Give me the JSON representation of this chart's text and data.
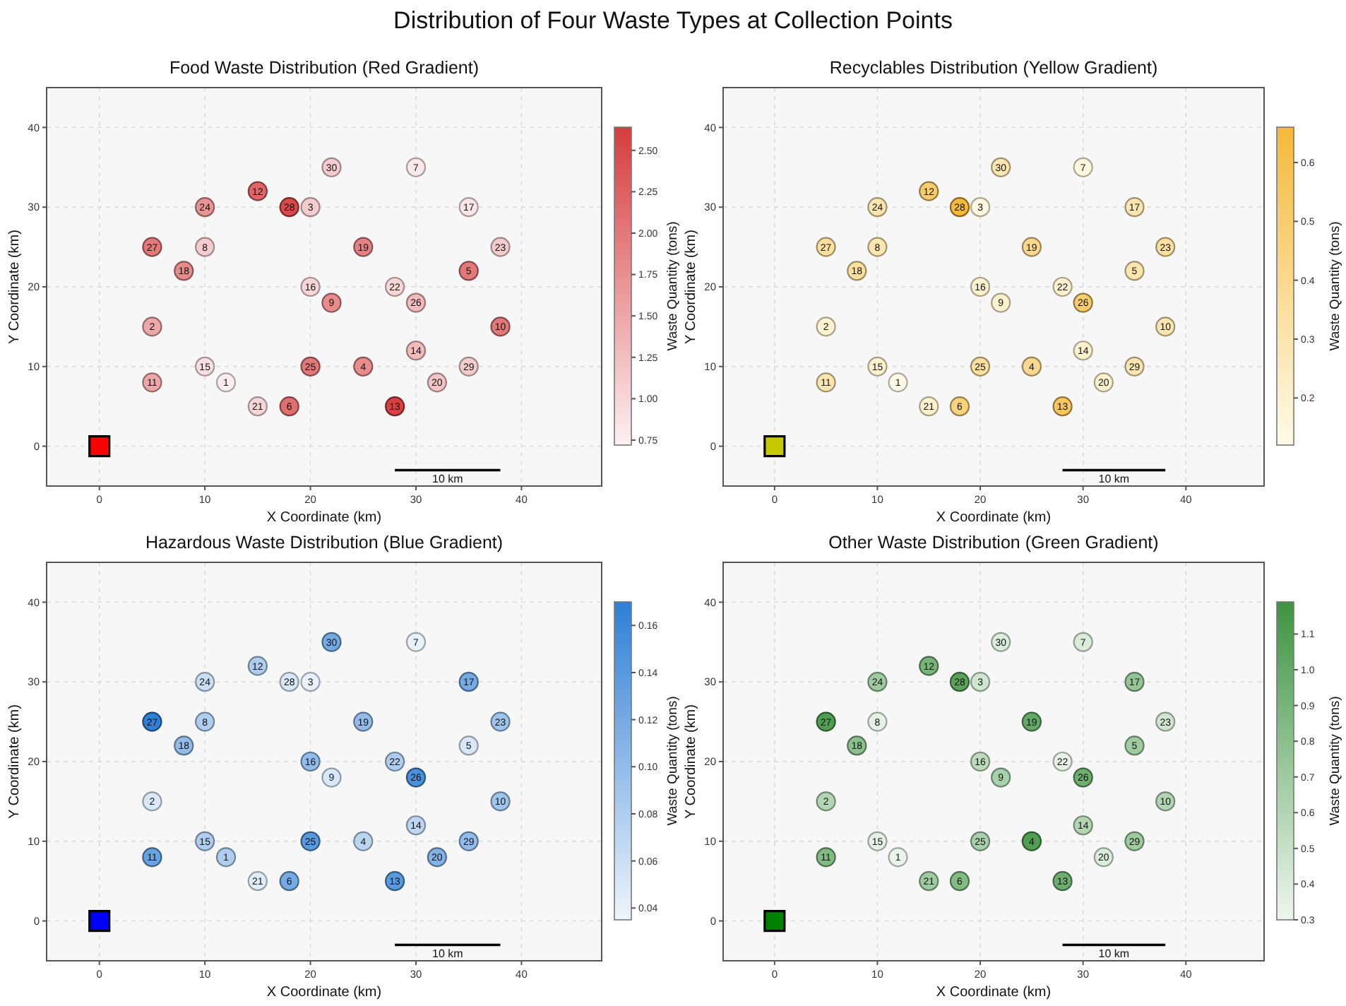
{
  "chart_data": [
    {
      "type": "other",
      "title": "Distribution of Four Waste Types at Collection Points"
    },
    {
      "type": "scatter",
      "title": "Food Waste Distribution (Red Gradient)",
      "xlabel": "X Coordinate (km)",
      "ylabel": "Y Coordinate (km)",
      "clabel": "Waste Quantity (tons)",
      "xlim": [
        -5,
        47.6
      ],
      "ylim": [
        -5,
        45
      ],
      "xticks": [
        0,
        10,
        20,
        30,
        40
      ],
      "yticks": [
        0,
        10,
        20,
        30,
        40
      ],
      "grid": true,
      "clim": [
        0.72,
        2.64
      ],
      "cticks": [
        {
          "value": 0.75,
          "label": "0.75"
        },
        {
          "value": 1,
          "label": "1.00"
        },
        {
          "value": 1.25,
          "label": "1.25"
        },
        {
          "value": 1.5,
          "label": "1.50"
        },
        {
          "value": 1.75,
          "label": "1.75"
        },
        {
          "value": 2,
          "label": "2.00"
        },
        {
          "value": 2.25,
          "label": "2.25"
        },
        {
          "value": 2.5,
          "label": "2.50"
        }
      ],
      "annotations": [
        {
          "text": "10 km",
          "x": 33,
          "y": -3
        },
        {
          "text": "1",
          "x": 12,
          "y": 8
        },
        {
          "text": "2",
          "x": 5,
          "y": 15
        },
        {
          "text": "3",
          "x": 20,
          "y": 30
        },
        {
          "text": "4",
          "x": 25,
          "y": 10
        },
        {
          "text": "5",
          "x": 35,
          "y": 22
        },
        {
          "text": "6",
          "x": 18,
          "y": 5
        },
        {
          "text": "7",
          "x": 30,
          "y": 35
        },
        {
          "text": "8",
          "x": 10,
          "y": 25
        },
        {
          "text": "9",
          "x": 22,
          "y": 18
        },
        {
          "text": "10",
          "x": 38,
          "y": 15
        },
        {
          "text": "11",
          "x": 5,
          "y": 8
        },
        {
          "text": "12",
          "x": 15,
          "y": 32
        },
        {
          "text": "13",
          "x": 28,
          "y": 5
        },
        {
          "text": "14",
          "x": 30,
          "y": 12
        },
        {
          "text": "15",
          "x": 10,
          "y": 10
        },
        {
          "text": "16",
          "x": 20,
          "y": 20
        },
        {
          "text": "17",
          "x": 35,
          "y": 30
        },
        {
          "text": "18",
          "x": 8,
          "y": 22
        },
        {
          "text": "19",
          "x": 25,
          "y": 25
        },
        {
          "text": "20",
          "x": 32,
          "y": 8
        },
        {
          "text": "21",
          "x": 15,
          "y": 5
        },
        {
          "text": "22",
          "x": 28,
          "y": 20
        },
        {
          "text": "23",
          "x": 38,
          "y": 25
        },
        {
          "text": "24",
          "x": 10,
          "y": 30
        },
        {
          "text": "25",
          "x": 20,
          "y": 10
        },
        {
          "text": "26",
          "x": 30,
          "y": 18
        },
        {
          "text": "27",
          "x": 5,
          "y": 25
        },
        {
          "text": "28",
          "x": 18,
          "y": 30
        },
        {
          "text": "29",
          "x": 35,
          "y": 10
        },
        {
          "text": "30",
          "x": 22,
          "y": 35
        }
      ],
      "series": [
        {
          "type": "scatter",
          "marker": "circle",
          "x": [
            12,
            5,
            20,
            25,
            35,
            18,
            30,
            10,
            22,
            38,
            5,
            15,
            28,
            30,
            10,
            20,
            35,
            8,
            25,
            32,
            15,
            28,
            38,
            10,
            20,
            30,
            5,
            18,
            35,
            22
          ],
          "values": [
            8,
            15,
            30,
            10,
            22,
            5,
            35,
            25,
            18,
            15,
            8,
            32,
            5,
            12,
            10,
            20,
            30,
            22,
            25,
            8,
            5,
            20,
            25,
            30,
            10,
            18,
            25,
            30,
            10,
            35
          ],
          "cvalues": [
            0.75,
            1.5,
            1.1,
            1.8,
            2.0,
            2.1,
            0.8,
            1.1,
            1.8,
            2.0,
            1.5,
            2.2,
            2.6,
            1.3,
            0.9,
            1.0,
            0.85,
            1.8,
            1.9,
            1.2,
            1.0,
            1.0,
            1.1,
            1.7,
            2.0,
            1.3,
            2.0,
            2.5,
            1.1,
            1.1
          ],
          "colors": [
            "#fcedef",
            "#eda7a8",
            "#f5ccce",
            "#e78b8c",
            "#e37879",
            "#e16f6f",
            "#fbe8ea",
            "#f5ccce",
            "#e78b8c",
            "#e37879",
            "#eda7a8",
            "#df6566",
            "#d74040",
            "#f1babb",
            "#f9dfe1",
            "#f7d6d7",
            "#fae4e6",
            "#e78b8c",
            "#e58182",
            "#f3c3c5",
            "#f7d6d7",
            "#f7d6d7",
            "#f5ccce",
            "#e99495",
            "#e37879",
            "#f1babb",
            "#e37879",
            "#d94949",
            "#f5ccce",
            "#f5ccce"
          ]
        },
        {
          "type": "scatter",
          "marker": "square",
          "color": "#ff0000",
          "x": [
            0
          ],
          "values": [
            0
          ]
        },
        {
          "type": "line",
          "color": "#000000",
          "x": [
            28,
            38
          ],
          "values": [
            -3,
            -3
          ]
        }
      ]
    },
    {
      "type": "scatter",
      "title": "Recyclables Distribution (Yellow Gradient)",
      "xlabel": "X Coordinate (km)",
      "ylabel": "Y Coordinate (km)",
      "clabel": "Waste Quantity (tons)",
      "xlim": [
        -5,
        47.6
      ],
      "ylim": [
        -5,
        45
      ],
      "xticks": [
        0,
        10,
        20,
        30,
        40
      ],
      "yticks": [
        0,
        10,
        20,
        30,
        40
      ],
      "grid": true,
      "clim": [
        0.12,
        0.66
      ],
      "cticks": [
        0.2,
        0.3,
        0.4,
        0.5,
        0.6
      ],
      "annotations": [
        {
          "text": "10 km",
          "x": 33,
          "y": -3
        },
        {
          "text": "1",
          "x": 12,
          "y": 8
        },
        {
          "text": "2",
          "x": 5,
          "y": 15
        },
        {
          "text": "3",
          "x": 20,
          "y": 30
        },
        {
          "text": "4",
          "x": 25,
          "y": 10
        },
        {
          "text": "5",
          "x": 35,
          "y": 22
        },
        {
          "text": "6",
          "x": 18,
          "y": 5
        },
        {
          "text": "7",
          "x": 30,
          "y": 35
        },
        {
          "text": "8",
          "x": 10,
          "y": 25
        },
        {
          "text": "9",
          "x": 22,
          "y": 18
        },
        {
          "text": "10",
          "x": 38,
          "y": 15
        },
        {
          "text": "11",
          "x": 5,
          "y": 8
        },
        {
          "text": "12",
          "x": 15,
          "y": 32
        },
        {
          "text": "13",
          "x": 28,
          "y": 5
        },
        {
          "text": "14",
          "x": 30,
          "y": 12
        },
        {
          "text": "15",
          "x": 10,
          "y": 10
        },
        {
          "text": "16",
          "x": 20,
          "y": 20
        },
        {
          "text": "17",
          "x": 35,
          "y": 30
        },
        {
          "text": "18",
          "x": 8,
          "y": 22
        },
        {
          "text": "19",
          "x": 25,
          "y": 25
        },
        {
          "text": "20",
          "x": 32,
          "y": 8
        },
        {
          "text": "21",
          "x": 15,
          "y": 5
        },
        {
          "text": "22",
          "x": 28,
          "y": 20
        },
        {
          "text": "23",
          "x": 38,
          "y": 25
        },
        {
          "text": "24",
          "x": 10,
          "y": 30
        },
        {
          "text": "25",
          "x": 20,
          "y": 10
        },
        {
          "text": "26",
          "x": 30,
          "y": 18
        },
        {
          "text": "27",
          "x": 5,
          "y": 25
        },
        {
          "text": "28",
          "x": 18,
          "y": 30
        },
        {
          "text": "29",
          "x": 35,
          "y": 10
        },
        {
          "text": "30",
          "x": 22,
          "y": 35
        }
      ],
      "series": [
        {
          "type": "scatter",
          "marker": "circle",
          "x": [
            12,
            5,
            20,
            25,
            35,
            18,
            30,
            10,
            22,
            38,
            5,
            15,
            28,
            30,
            10,
            20,
            35,
            8,
            25,
            32,
            15,
            28,
            38,
            10,
            20,
            30,
            5,
            18,
            35,
            22
          ],
          "values": [
            8,
            15,
            30,
            10,
            22,
            5,
            35,
            25,
            18,
            15,
            8,
            32,
            5,
            12,
            10,
            20,
            30,
            22,
            25,
            8,
            5,
            20,
            25,
            30,
            10,
            18,
            25,
            30,
            10,
            35
          ],
          "cvalues": [
            0.13,
            0.2,
            0.15,
            0.4,
            0.3,
            0.45,
            0.15,
            0.3,
            0.2,
            0.3,
            0.3,
            0.5,
            0.55,
            0.2,
            0.2,
            0.2,
            0.3,
            0.35,
            0.4,
            0.2,
            0.2,
            0.2,
            0.35,
            0.3,
            0.35,
            0.5,
            0.35,
            0.66,
            0.3,
            0.3
          ],
          "colors": [
            "#fffae5",
            "#fef1ce",
            "#fef7de",
            "#fad98e",
            "#fce5ae",
            "#f9d37e",
            "#fef7de",
            "#fce5ae",
            "#fef1ce",
            "#fce5ae",
            "#fce5ae",
            "#f8cd6e",
            "#f7c65d",
            "#fef1ce",
            "#fef1ce",
            "#fef1ce",
            "#fce5ae",
            "#fbdf9e",
            "#fad98e",
            "#fef1ce",
            "#fef1ce",
            "#fef1ce",
            "#fbdf9e",
            "#fce5ae",
            "#fbdf9e",
            "#f8cd6e",
            "#fbdf9e",
            "#f5b93a",
            "#fce5ae",
            "#fce5ae"
          ]
        },
        {
          "type": "scatter",
          "marker": "square",
          "color": "#c8c800",
          "x": [
            0
          ],
          "values": [
            0
          ]
        },
        {
          "type": "line",
          "color": "#000000",
          "x": [
            28,
            38
          ],
          "values": [
            -3,
            -3
          ]
        }
      ]
    },
    {
      "type": "scatter",
      "title": "Hazardous Waste Distribution (Blue Gradient)",
      "xlabel": "X Coordinate (km)",
      "ylabel": "Y Coordinate (km)",
      "clabel": "Waste Quantity (tons)",
      "xlim": [
        -5,
        47.6
      ],
      "ylim": [
        -5,
        45
      ],
      "xticks": [
        0,
        10,
        20,
        30,
        40
      ],
      "yticks": [
        0,
        10,
        20,
        30,
        40
      ],
      "grid": true,
      "clim": [
        0.035,
        0.17
      ],
      "cticks": [
        0.04,
        0.06,
        0.08,
        {
          "value": 0.1,
          "label": "0.10"
        },
        0.12,
        0.14,
        0.16
      ],
      "annotations": [
        {
          "text": "10 km",
          "x": 33,
          "y": -3
        },
        {
          "text": "1",
          "x": 12,
          "y": 8
        },
        {
          "text": "2",
          "x": 5,
          "y": 15
        },
        {
          "text": "3",
          "x": 20,
          "y": 30
        },
        {
          "text": "4",
          "x": 25,
          "y": 10
        },
        {
          "text": "5",
          "x": 35,
          "y": 22
        },
        {
          "text": "6",
          "x": 18,
          "y": 5
        },
        {
          "text": "7",
          "x": 30,
          "y": 35
        },
        {
          "text": "8",
          "x": 10,
          "y": 25
        },
        {
          "text": "9",
          "x": 22,
          "y": 18
        },
        {
          "text": "10",
          "x": 38,
          "y": 15
        },
        {
          "text": "11",
          "x": 5,
          "y": 8
        },
        {
          "text": "12",
          "x": 15,
          "y": 32
        },
        {
          "text": "13",
          "x": 28,
          "y": 5
        },
        {
          "text": "14",
          "x": 30,
          "y": 12
        },
        {
          "text": "15",
          "x": 10,
          "y": 10
        },
        {
          "text": "16",
          "x": 20,
          "y": 20
        },
        {
          "text": "17",
          "x": 35,
          "y": 30
        },
        {
          "text": "18",
          "x": 8,
          "y": 22
        },
        {
          "text": "19",
          "x": 25,
          "y": 25
        },
        {
          "text": "20",
          "x": 32,
          "y": 8
        },
        {
          "text": "21",
          "x": 15,
          "y": 5
        },
        {
          "text": "22",
          "x": 28,
          "y": 20
        },
        {
          "text": "23",
          "x": 38,
          "y": 25
        },
        {
          "text": "24",
          "x": 10,
          "y": 30
        },
        {
          "text": "25",
          "x": 20,
          "y": 10
        },
        {
          "text": "26",
          "x": 30,
          "y": 18
        },
        {
          "text": "27",
          "x": 5,
          "y": 25
        },
        {
          "text": "28",
          "x": 18,
          "y": 30
        },
        {
          "text": "29",
          "x": 35,
          "y": 10
        },
        {
          "text": "30",
          "x": 22,
          "y": 35
        }
      ],
      "series": [
        {
          "type": "scatter",
          "marker": "circle",
          "x": [
            12,
            5,
            20,
            25,
            35,
            18,
            30,
            10,
            22,
            38,
            5,
            15,
            28,
            30,
            10,
            20,
            35,
            8,
            25,
            32,
            15,
            28,
            38,
            10,
            20,
            30,
            5,
            18,
            35,
            22
          ],
          "values": [
            8,
            15,
            30,
            10,
            22,
            5,
            35,
            25,
            18,
            15,
            8,
            32,
            5,
            12,
            10,
            20,
            30,
            22,
            25,
            8,
            5,
            20,
            25,
            30,
            10,
            18,
            25,
            30,
            10,
            35
          ],
          "cvalues": [
            0.08,
            0.05,
            0.04,
            0.07,
            0.05,
            0.12,
            0.04,
            0.08,
            0.05,
            0.09,
            0.13,
            0.08,
            0.14,
            0.07,
            0.08,
            0.1,
            0.12,
            0.1,
            0.1,
            0.11,
            0.045,
            0.08,
            0.09,
            0.06,
            0.14,
            0.15,
            0.17,
            0.05,
            0.1,
            0.12
          ],
          "colors": [
            "#aecdef",
            "#d9e8f8",
            "#e7f1fb",
            "#bcd6f2",
            "#d9e8f8",
            "#75abe4",
            "#e7f1fb",
            "#aecdef",
            "#d9e8f8",
            "#a0c5ed",
            "#67a2e1",
            "#aecdef",
            "#5999de",
            "#bcd6f2",
            "#aecdef",
            "#92bcea",
            "#75abe4",
            "#92bcea",
            "#92bcea",
            "#83b3e7",
            "#e0ecf9",
            "#aecdef",
            "#a0c5ed",
            "#cadff5",
            "#5999de",
            "#4a90dc",
            "#2e7fd6",
            "#d9e8f8",
            "#92bcea",
            "#75abe4"
          ]
        },
        {
          "type": "scatter",
          "marker": "square",
          "color": "#0000ff",
          "x": [
            0
          ],
          "values": [
            0
          ]
        },
        {
          "type": "line",
          "color": "#000000",
          "x": [
            28,
            38
          ],
          "values": [
            -3,
            -3
          ]
        }
      ]
    },
    {
      "type": "scatter",
      "title": "Other Waste Distribution (Green Gradient)",
      "xlabel": "X Coordinate (km)",
      "ylabel": "Y Coordinate (km)",
      "clabel": "Waste Quantity (tons)",
      "xlim": [
        -5,
        47.6
      ],
      "ylim": [
        -5,
        45
      ],
      "xticks": [
        0,
        10,
        20,
        30,
        40
      ],
      "yticks": [
        0,
        10,
        20,
        30,
        40
      ],
      "grid": true,
      "clim": [
        0.3,
        1.19
      ],
      "cticks": [
        0.3,
        0.4,
        0.5,
        0.6,
        0.7,
        0.8,
        0.9,
        {
          "value": 1,
          "label": "1.0"
        },
        1.1
      ],
      "annotations": [
        {
          "text": "10 km",
          "x": 33,
          "y": -3
        },
        {
          "text": "1",
          "x": 12,
          "y": 8
        },
        {
          "text": "2",
          "x": 5,
          "y": 15
        },
        {
          "text": "3",
          "x": 20,
          "y": 30
        },
        {
          "text": "4",
          "x": 25,
          "y": 10
        },
        {
          "text": "5",
          "x": 35,
          "y": 22
        },
        {
          "text": "6",
          "x": 18,
          "y": 5
        },
        {
          "text": "7",
          "x": 30,
          "y": 35
        },
        {
          "text": "8",
          "x": 10,
          "y": 25
        },
        {
          "text": "9",
          "x": 22,
          "y": 18
        },
        {
          "text": "10",
          "x": 38,
          "y": 15
        },
        {
          "text": "11",
          "x": 5,
          "y": 8
        },
        {
          "text": "12",
          "x": 15,
          "y": 32
        },
        {
          "text": "13",
          "x": 28,
          "y": 5
        },
        {
          "text": "14",
          "x": 30,
          "y": 12
        },
        {
          "text": "15",
          "x": 10,
          "y": 10
        },
        {
          "text": "16",
          "x": 20,
          "y": 20
        },
        {
          "text": "17",
          "x": 35,
          "y": 30
        },
        {
          "text": "18",
          "x": 8,
          "y": 22
        },
        {
          "text": "19",
          "x": 25,
          "y": 25
        },
        {
          "text": "20",
          "x": 32,
          "y": 8
        },
        {
          "text": "21",
          "x": 15,
          "y": 5
        },
        {
          "text": "22",
          "x": 28,
          "y": 20
        },
        {
          "text": "23",
          "x": 38,
          "y": 25
        },
        {
          "text": "24",
          "x": 10,
          "y": 30
        },
        {
          "text": "25",
          "x": 20,
          "y": 10
        },
        {
          "text": "26",
          "x": 30,
          "y": 18
        },
        {
          "text": "27",
          "x": 5,
          "y": 25
        },
        {
          "text": "28",
          "x": 18,
          "y": 30
        },
        {
          "text": "29",
          "x": 35,
          "y": 10
        },
        {
          "text": "30",
          "x": 22,
          "y": 35
        }
      ],
      "series": [
        {
          "type": "scatter",
          "marker": "circle",
          "x": [
            12,
            5,
            20,
            25,
            35,
            18,
            30,
            10,
            22,
            38,
            5,
            15,
            28,
            30,
            10,
            20,
            35,
            8,
            25,
            32,
            15,
            28,
            38,
            10,
            20,
            30,
            5,
            18,
            35,
            22
          ],
          "values": [
            8,
            15,
            30,
            10,
            22,
            5,
            35,
            25,
            18,
            15,
            8,
            32,
            5,
            12,
            10,
            20,
            30,
            22,
            25,
            8,
            5,
            20,
            25,
            30,
            10,
            18,
            25,
            30,
            10,
            35
          ],
          "cvalues": [
            0.32,
            0.6,
            0.45,
            1.1,
            0.7,
            0.85,
            0.4,
            0.35,
            0.65,
            0.6,
            0.85,
            0.9,
            0.95,
            0.6,
            0.35,
            0.55,
            0.75,
            0.8,
            1.0,
            0.4,
            0.7,
            0.35,
            0.45,
            0.7,
            0.65,
            0.95,
            1.1,
            1.05,
            0.7,
            0.4
          ],
          "colors": [
            "#eaf5ea",
            "#b2d6b3",
            "#d0e6d1",
            "#4f9e52",
            "#9fcba0",
            "#81ba82",
            "#daecda",
            "#e4f1e4",
            "#a8d0aa",
            "#b2d6b3",
            "#81ba82",
            "#77b479",
            "#6daf6f",
            "#b2d6b3",
            "#e4f1e4",
            "#bcdbbd",
            "#94c596",
            "#8bbf8c",
            "#63a965",
            "#daecda",
            "#9fcba0",
            "#e4f1e4",
            "#d0e6d1",
            "#9fcba0",
            "#a8d0aa",
            "#6daf6f",
            "#4f9e52",
            "#59a45b",
            "#9fcba0",
            "#daecda"
          ]
        },
        {
          "type": "scatter",
          "marker": "square",
          "color": "#008000",
          "x": [
            0
          ],
          "values": [
            0
          ]
        },
        {
          "type": "line",
          "color": "#000000",
          "x": [
            28,
            38
          ],
          "values": [
            -3,
            -3
          ]
        }
      ]
    }
  ]
}
